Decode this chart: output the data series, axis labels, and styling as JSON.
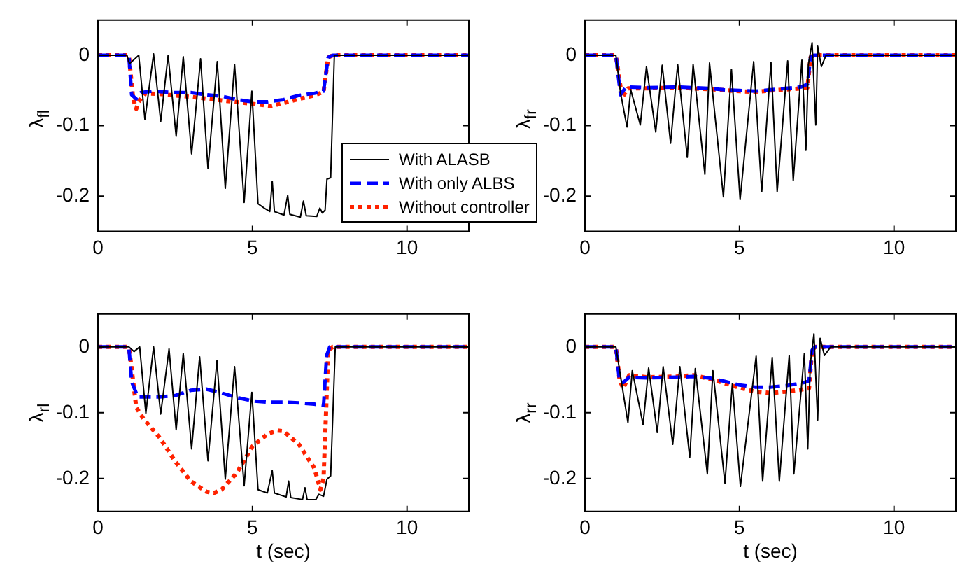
{
  "chart_data": [
    {
      "type": "line",
      "ylabel": "λ$_{fl}$",
      "xlim": [
        0,
        12
      ],
      "xticks": [
        0,
        5,
        10
      ],
      "ylim": [
        -0.25,
        0.05
      ],
      "yticks": [
        0,
        -0.1,
        -0.2
      ],
      "grid": false,
      "legend": "bottom right",
      "marker": "none",
      "series": [
        {
          "name": "With ALASB",
          "color": "#000000",
          "line_style": "solid",
          "x": [
            0,
            0.94,
            1.02,
            1.32,
            1.52,
            1.8,
            2.03,
            2.27,
            2.53,
            2.76,
            3.03,
            3.32,
            3.56,
            3.86,
            4.12,
            4.42,
            4.73,
            4.98,
            5.18,
            5.41,
            5.56,
            5.64,
            5.71,
            6.02,
            6.14,
            6.21,
            6.55,
            6.65,
            6.74,
            7.08,
            7.18,
            7.26,
            7.35,
            7.41,
            7.53,
            7.65,
            12
          ],
          "values": [
            0,
            0,
            -0.012,
            0,
            -0.091,
            0.002,
            -0.094,
            0,
            -0.115,
            -0.002,
            -0.14,
            -0.005,
            -0.161,
            -0.009,
            -0.189,
            -0.013,
            -0.209,
            -0.051,
            -0.211,
            -0.218,
            -0.222,
            -0.179,
            -0.222,
            -0.227,
            -0.199,
            -0.226,
            -0.23,
            -0.207,
            -0.228,
            -0.229,
            -0.217,
            -0.224,
            -0.22,
            -0.176,
            -0.174,
            0,
            0
          ]
        },
        {
          "name": "With only ALBS",
          "color": "#0000ff",
          "line_style": "dashed",
          "x": [
            0,
            1.0,
            1.09,
            1.24,
            1.39,
            1.77,
            2.5,
            3.0,
            3.5,
            4.0,
            4.5,
            5.0,
            5.5,
            6.0,
            6.5,
            7.0,
            7.3,
            7.45,
            7.6,
            12
          ],
          "values": [
            0,
            0,
            -0.056,
            -0.062,
            -0.053,
            -0.051,
            -0.053,
            -0.053,
            -0.056,
            -0.058,
            -0.063,
            -0.066,
            -0.066,
            -0.063,
            -0.057,
            -0.054,
            -0.051,
            -0.003,
            0,
            0
          ]
        },
        {
          "name": "Without controller",
          "color": "#ff2200",
          "line_style": "dotted",
          "x": [
            0,
            1.0,
            1.14,
            1.24,
            1.32,
            1.52,
            2.0,
            3.0,
            4.0,
            5.0,
            5.6,
            6.0,
            6.5,
            7.0,
            7.3,
            7.45,
            7.6,
            12
          ],
          "values": [
            0,
            0,
            -0.062,
            -0.076,
            -0.066,
            -0.054,
            -0.055,
            -0.059,
            -0.064,
            -0.069,
            -0.072,
            -0.068,
            -0.062,
            -0.057,
            -0.052,
            -0.003,
            0,
            0
          ]
        }
      ]
    },
    {
      "type": "line",
      "ylabel": "λ$_{fr}$",
      "xlim": [
        0,
        12
      ],
      "xticks": [
        0,
        5,
        10
      ],
      "ylim": [
        -0.25,
        0.05
      ],
      "yticks": [
        0,
        -0.1,
        -0.2
      ],
      "grid": false,
      "marker": "none",
      "series": [
        {
          "color": "#000000",
          "line_style": "solid",
          "x": [
            0,
            1.0,
            1.15,
            1.36,
            1.48,
            1.79,
            1.99,
            2.29,
            2.5,
            2.77,
            3.0,
            3.31,
            3.5,
            3.88,
            4.03,
            4.48,
            4.74,
            5.02,
            5.46,
            5.72,
            6.02,
            6.22,
            6.56,
            6.74,
            7.02,
            7.15,
            7.23,
            7.35,
            7.47,
            7.53,
            7.65,
            7.8,
            12
          ],
          "values": [
            0,
            0,
            -0.053,
            -0.102,
            -0.049,
            -0.099,
            -0.016,
            -0.109,
            -0.014,
            -0.125,
            -0.013,
            -0.145,
            -0.013,
            -0.169,
            -0.011,
            -0.201,
            -0.02,
            -0.205,
            -0.009,
            -0.194,
            -0.01,
            -0.194,
            -0.008,
            -0.178,
            -0.007,
            -0.135,
            -0.013,
            0.018,
            -0.099,
            0.013,
            -0.016,
            0,
            0
          ]
        },
        {
          "color": "#0000ff",
          "line_style": "dashed",
          "x": [
            0,
            1.0,
            1.15,
            1.33,
            2.0,
            3.0,
            4.0,
            4.5,
            5.0,
            5.5,
            6.0,
            6.5,
            7.0,
            7.2,
            7.3,
            7.4,
            12
          ],
          "values": [
            0,
            0,
            -0.056,
            -0.045,
            -0.046,
            -0.045,
            -0.047,
            -0.049,
            -0.05,
            -0.051,
            -0.049,
            -0.047,
            -0.045,
            -0.041,
            -0.003,
            0,
            0
          ]
        },
        {
          "color": "#ff2200",
          "line_style": "dotted",
          "x": [
            0,
            1.0,
            1.2,
            1.4,
            2.0,
            3.0,
            4.0,
            5.0,
            5.5,
            6.0,
            7.0,
            7.2,
            7.3,
            7.4,
            12
          ],
          "values": [
            0,
            0,
            -0.06,
            -0.047,
            -0.047,
            -0.046,
            -0.048,
            -0.051,
            -0.052,
            -0.05,
            -0.047,
            -0.046,
            -0.003,
            0,
            0
          ]
        }
      ]
    },
    {
      "type": "line",
      "ylabel": "λ$_{rl}$",
      "xlabel": "t (sec)",
      "xlim": [
        0,
        12
      ],
      "xticks": [
        0,
        5,
        10
      ],
      "ylim": [
        -0.25,
        0.05
      ],
      "yticks": [
        0,
        -0.1,
        -0.2
      ],
      "grid": false,
      "marker": "none",
      "series": [
        {
          "color": "#000000",
          "line_style": "solid",
          "x": [
            0,
            1.0,
            1.17,
            1.35,
            1.55,
            1.8,
            2.03,
            2.3,
            2.53,
            2.76,
            3.03,
            3.29,
            3.56,
            3.85,
            4.12,
            4.42,
            4.73,
            4.98,
            5.18,
            5.48,
            5.64,
            5.71,
            6.09,
            6.17,
            6.24,
            6.62,
            6.7,
            6.77,
            7.05,
            7.15,
            7.3,
            7.41,
            7.53,
            7.68,
            12
          ],
          "values": [
            0,
            0,
            -0.007,
            0,
            -0.101,
            0,
            -0.102,
            -0.003,
            -0.126,
            -0.01,
            -0.155,
            -0.015,
            -0.173,
            -0.021,
            -0.201,
            -0.03,
            -0.211,
            -0.069,
            -0.217,
            -0.222,
            -0.188,
            -0.222,
            -0.228,
            -0.204,
            -0.229,
            -0.232,
            -0.214,
            -0.232,
            -0.232,
            -0.224,
            -0.227,
            -0.201,
            -0.196,
            0,
            0
          ]
        },
        {
          "color": "#0000ff",
          "line_style": "dashed",
          "x": [
            0,
            1.0,
            1.09,
            1.29,
            1.62,
            2.0,
            2.5,
            3.0,
            3.5,
            4.0,
            4.5,
            5.0,
            5.5,
            6.0,
            6.5,
            7.0,
            7.3,
            7.4,
            7.5,
            12
          ],
          "values": [
            0,
            0,
            -0.053,
            -0.076,
            -0.076,
            -0.076,
            -0.074,
            -0.066,
            -0.064,
            -0.07,
            -0.077,
            -0.082,
            -0.084,
            -0.084,
            -0.085,
            -0.087,
            -0.089,
            -0.013,
            0,
            0
          ]
        },
        {
          "color": "#ff2200",
          "line_style": "dotted",
          "x": [
            0,
            1.0,
            1.09,
            1.24,
            1.47,
            2.0,
            2.5,
            3.0,
            3.5,
            3.75,
            4.0,
            4.5,
            5.0,
            5.5,
            5.8,
            6.0,
            6.5,
            7.0,
            7.2,
            7.3,
            7.38,
            7.45,
            7.6,
            12
          ],
          "values": [
            0,
            0,
            -0.033,
            -0.092,
            -0.109,
            -0.138,
            -0.174,
            -0.204,
            -0.22,
            -0.222,
            -0.217,
            -0.191,
            -0.151,
            -0.132,
            -0.127,
            -0.128,
            -0.148,
            -0.184,
            -0.217,
            -0.2,
            -0.1,
            -0.005,
            0,
            0
          ]
        }
      ]
    },
    {
      "type": "line",
      "ylabel": "λ$_{rr}$",
      "xlabel": "t (sec)",
      "xlim": [
        0,
        12
      ],
      "xticks": [
        0,
        5,
        10
      ],
      "ylim": [
        -0.25,
        0.05
      ],
      "yticks": [
        0,
        -0.1,
        -0.2
      ],
      "grid": false,
      "marker": "none",
      "series": [
        {
          "color": "#000000",
          "line_style": "solid",
          "x": [
            0,
            1.0,
            1.19,
            1.39,
            1.53,
            1.88,
            2.06,
            2.34,
            2.53,
            2.84,
            3.07,
            3.39,
            3.57,
            3.96,
            4.14,
            4.53,
            4.77,
            5.03,
            5.54,
            5.75,
            6.06,
            6.29,
            6.61,
            6.76,
            7.1,
            7.21,
            7.29,
            7.41,
            7.53,
            7.61,
            7.75,
            7.95,
            12
          ],
          "values": [
            0,
            0,
            -0.056,
            -0.115,
            -0.036,
            -0.118,
            -0.032,
            -0.13,
            -0.03,
            -0.148,
            -0.03,
            -0.168,
            -0.033,
            -0.193,
            -0.036,
            -0.207,
            -0.056,
            -0.212,
            -0.014,
            -0.204,
            -0.016,
            -0.204,
            -0.013,
            -0.193,
            -0.01,
            -0.155,
            -0.026,
            0.02,
            -0.111,
            0.013,
            -0.013,
            0,
            0
          ]
        },
        {
          "color": "#0000ff",
          "line_style": "dashed",
          "x": [
            0,
            1.0,
            1.12,
            1.24,
            1.43,
            2.0,
            3.0,
            3.5,
            4.0,
            4.5,
            5.0,
            5.5,
            6.0,
            6.5,
            7.0,
            7.25,
            7.35,
            7.45,
            12
          ],
          "values": [
            0,
            0,
            -0.053,
            -0.054,
            -0.046,
            -0.047,
            -0.046,
            -0.045,
            -0.047,
            -0.052,
            -0.058,
            -0.061,
            -0.061,
            -0.059,
            -0.055,
            -0.052,
            -0.005,
            0,
            0
          ]
        },
        {
          "color": "#ff2200",
          "line_style": "dotted",
          "x": [
            0,
            1.0,
            1.12,
            1.24,
            1.43,
            2.0,
            3.0,
            3.5,
            4.0,
            4.5,
            5.0,
            5.5,
            6.0,
            6.5,
            7.0,
            7.25,
            7.35,
            7.45,
            12
          ],
          "values": [
            0,
            0,
            -0.05,
            -0.063,
            -0.043,
            -0.046,
            -0.045,
            -0.043,
            -0.048,
            -0.055,
            -0.062,
            -0.068,
            -0.07,
            -0.068,
            -0.065,
            -0.063,
            -0.005,
            0,
            0
          ]
        }
      ]
    }
  ]
}
